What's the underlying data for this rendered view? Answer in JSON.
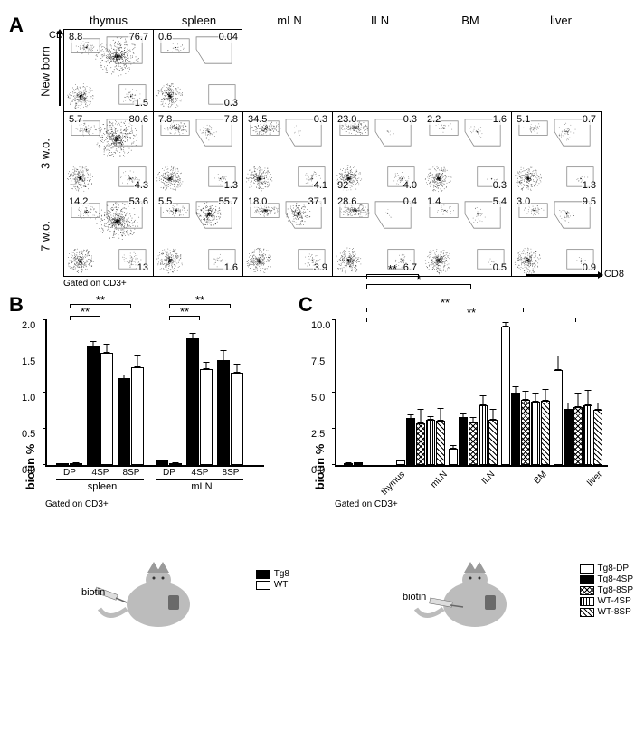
{
  "panelA": {
    "label": "A",
    "y_axis": "CD4",
    "x_axis": "CD8",
    "gated": "Gated on CD3+",
    "columns": [
      "thymus",
      "spleen",
      "mLN",
      "ILN",
      "BM",
      "liver"
    ],
    "rows": [
      "New born",
      "3 w.o.",
      "7 w.o."
    ],
    "plots": [
      [
        {
          "tl": "8.8",
          "tr": "76.7",
          "br": "1.5",
          "pattern": "thymus"
        },
        {
          "tl": "0.6",
          "tr": "0.04",
          "br": "0.3",
          "pattern": "sparse"
        },
        null,
        null,
        null,
        null
      ],
      [
        {
          "tl": "5.7",
          "tr": "80.6",
          "br": "4.3",
          "pattern": "thymus"
        },
        {
          "tl": "7.8",
          "tr": "7.8",
          "br": "1.3",
          "pattern": "spleen"
        },
        {
          "tl": "34.5",
          "tr": "0.3",
          "br": "4.1",
          "pattern": "ln"
        },
        {
          "tl": "23.0",
          "tr": "0.3",
          "br": "4.0",
          "bl": "92",
          "pattern": "ln"
        },
        {
          "tl": "2.2",
          "tr": "1.6",
          "br": "0.3",
          "pattern": "bm"
        },
        {
          "tl": "5.1",
          "tr": "0.7",
          "br": "1.3",
          "pattern": "liver"
        }
      ],
      [
        {
          "tl": "14.2",
          "tr": "53.6",
          "br": "13",
          "pattern": "thymus"
        },
        {
          "tl": "5.5",
          "tr": "55.7",
          "br": "1.6",
          "pattern": "spleen2"
        },
        {
          "tl": "18.0",
          "tr": "37.1",
          "br": "3.9",
          "pattern": "ln2"
        },
        {
          "tl": "28.6",
          "tr": "0.4",
          "br": "6.7",
          "pattern": "ln"
        },
        {
          "tl": "1.4",
          "tr": "5.4",
          "br": "0.5",
          "pattern": "bm"
        },
        {
          "tl": "3.0",
          "tr": "9.5",
          "br": "0.9",
          "pattern": "liver"
        }
      ]
    ]
  },
  "panelB": {
    "label": "B",
    "ylabel": "biotin %",
    "ylim": [
      0,
      2.0
    ],
    "yticks": [
      0.0,
      0.5,
      1.0,
      1.5,
      2.0
    ],
    "gated": "Gated on CD3+",
    "groups": [
      "spleen",
      "mLN"
    ],
    "categories": [
      "DP",
      "4SP",
      "8SP"
    ],
    "series": [
      {
        "name": "Tg8",
        "fill": "fill-black"
      },
      {
        "name": "WT",
        "fill": "fill-white"
      }
    ],
    "data": {
      "spleen": {
        "DP": [
          0.02,
          0.02
        ],
        "4SP": [
          1.65,
          1.55
        ],
        "8SP": [
          1.2,
          1.35
        ]
      },
      "mLN": {
        "DP": [
          0.06,
          0.03
        ],
        "4SP": [
          1.75,
          1.32
        ],
        "8SP": [
          1.45,
          1.28
        ]
      }
    },
    "errors": {
      "spleen": {
        "DP": [
          0.01,
          0.01
        ],
        "4SP": [
          0.08,
          0.12
        ],
        "8SP": [
          0.06,
          0.18
        ]
      },
      "mLN": {
        "DP": [
          0.02,
          0.01
        ],
        "4SP": [
          0.09,
          0.1
        ],
        "8SP": [
          0.15,
          0.12
        ]
      }
    },
    "sig": [
      {
        "from": "spleen-DP",
        "to": "spleen-4SP",
        "label": "**"
      },
      {
        "from": "spleen-DP",
        "to": "spleen-8SP",
        "label": "**"
      },
      {
        "from": "mLN-DP",
        "to": "mLN-4SP",
        "label": "**"
      },
      {
        "from": "mLN-DP",
        "to": "mLN-8SP",
        "label": "**"
      }
    ],
    "mouse_label": "biotin",
    "legend": [
      {
        "name": "Tg8",
        "fill": "fill-black"
      },
      {
        "name": "WT",
        "fill": "fill-white"
      }
    ]
  },
  "panelC": {
    "label": "C",
    "ylabel": "biotin %",
    "ylim": [
      0,
      10.0
    ],
    "yticks": [
      0.0,
      2.5,
      5.0,
      7.5,
      10.0
    ],
    "gated": "Gated on CD3+",
    "categories": [
      "thymus",
      "mLN",
      "ILN",
      "BM",
      "liver"
    ],
    "series": [
      {
        "name": "Tg8-DP",
        "fill": "fill-white"
      },
      {
        "name": "Tg8-4SP",
        "fill": "fill-black"
      },
      {
        "name": "Tg8-8SP",
        "fill": "fill-cross"
      },
      {
        "name": "WT-4SP",
        "fill": "fill-vert"
      },
      {
        "name": "WT-8SP",
        "fill": "fill-diag"
      }
    ],
    "data": {
      "thymus": [
        0.15,
        0.18,
        0.0,
        0.0,
        0.0
      ],
      "mLN": [
        0.3,
        3.25,
        2.9,
        3.15,
        3.05
      ],
      "ILN": [
        1.1,
        3.3,
        2.95,
        4.1,
        3.1
      ],
      "BM": [
        9.55,
        5.0,
        4.5,
        4.4,
        4.45
      ],
      "liver": [
        6.55,
        3.85,
        4.0,
        4.1,
        3.8
      ]
    },
    "errors": {
      "thymus": [
        0.05,
        0.05,
        0,
        0,
        0
      ],
      "mLN": [
        0.1,
        0.3,
        1.0,
        0.25,
        0.9
      ],
      "ILN": [
        0.3,
        0.3,
        0.35,
        0.7,
        0.8
      ],
      "BM": [
        0.3,
        0.5,
        0.6,
        0.6,
        0.8
      ],
      "liver": [
        1.0,
        0.5,
        1.0,
        1.1,
        0.5
      ]
    },
    "sig": [
      {
        "from": "thymus",
        "to": "mLN",
        "label": "**"
      },
      {
        "from": "thymus",
        "to": "ILN",
        "label": "*"
      },
      {
        "from": "thymus",
        "to": "BM",
        "label": "**"
      },
      {
        "from": "thymus",
        "to": "liver",
        "label": "**"
      }
    ],
    "mouse_label": "biotin"
  },
  "colors": {
    "black": "#000000",
    "white": "#ffffff",
    "mouse_gray": "#bcbcbc",
    "mouse_dark": "#8a8a8a"
  }
}
